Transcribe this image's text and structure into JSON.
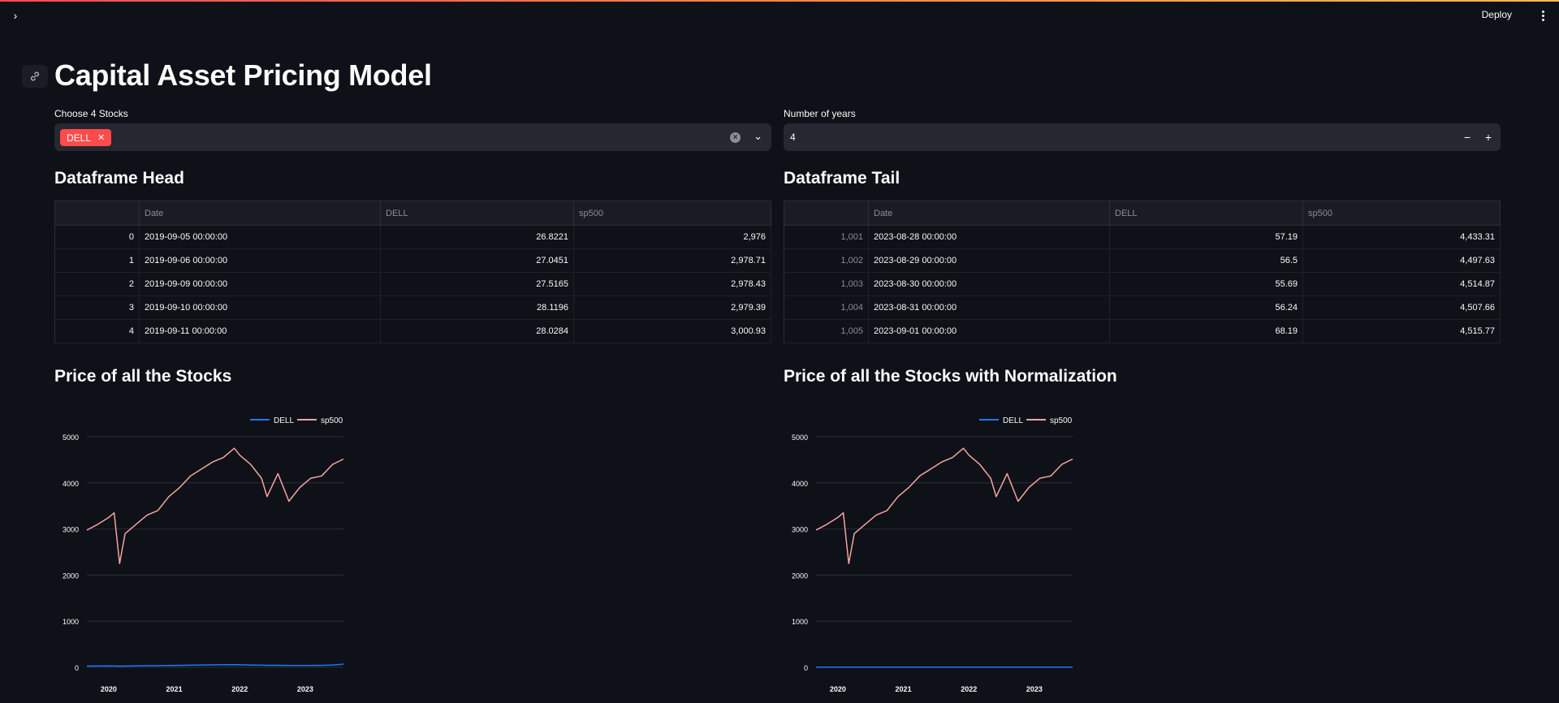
{
  "header": {
    "deploy_label": "Deploy"
  },
  "page": {
    "title": "Capital Asset Pricing Model"
  },
  "controls": {
    "stocks_label": "Choose 4 Stocks",
    "selected_stocks": [
      "DELL"
    ],
    "years_label": "Number of years",
    "years_value": "4"
  },
  "head_table": {
    "title": "Dataframe Head",
    "columns": [
      "",
      "Date",
      "DELL",
      "sp500"
    ],
    "rows": [
      [
        "0",
        "2019-09-05 00:00:00",
        "26.8221",
        "2,976"
      ],
      [
        "1",
        "2019-09-06 00:00:00",
        "27.0451",
        "2,978.71"
      ],
      [
        "2",
        "2019-09-09 00:00:00",
        "27.5165",
        "2,978.43"
      ],
      [
        "3",
        "2019-09-10 00:00:00",
        "28.1196",
        "2,979.39"
      ],
      [
        "4",
        "2019-09-11 00:00:00",
        "28.0284",
        "3,000.93"
      ]
    ]
  },
  "tail_table": {
    "title": "Dataframe Tail",
    "columns": [
      "",
      "Date",
      "DELL",
      "sp500"
    ],
    "rows": [
      [
        "1,001",
        "2023-08-28 00:00:00",
        "57.19",
        "4,433.31"
      ],
      [
        "1,002",
        "2023-08-29 00:00:00",
        "56.5",
        "4,497.63"
      ],
      [
        "1,003",
        "2023-08-30 00:00:00",
        "55.69",
        "4,514.87"
      ],
      [
        "1,004",
        "2023-08-31 00:00:00",
        "56.24",
        "4,507.66"
      ],
      [
        "1,005",
        "2023-09-01 00:00:00",
        "68.19",
        "4,515.77"
      ]
    ]
  },
  "charts": {
    "left_title": "Price of all the Stocks",
    "right_title": "Price of all the Stocks with Normalization"
  },
  "colors": {
    "dell": "#1f77ff",
    "sp500": "#f5a4a0",
    "accent": "#ff4b4b"
  },
  "chart_data": [
    {
      "type": "line",
      "title": "",
      "legend": "top-center",
      "grid": true,
      "x": [
        "2019-09",
        "2019-11",
        "2020-01",
        "2020-02",
        "2020-03",
        "2020-04",
        "2020-06",
        "2020-08",
        "2020-10",
        "2020-12",
        "2021-02",
        "2021-04",
        "2021-06",
        "2021-08",
        "2021-10",
        "2021-12",
        "2022-01",
        "2022-03",
        "2022-05",
        "2022-06",
        "2022-08",
        "2022-10",
        "2022-12",
        "2023-02",
        "2023-04",
        "2023-06",
        "2023-08"
      ],
      "xticks": [
        "2020",
        "2021",
        "2022",
        "2023"
      ],
      "yticks": [
        "0",
        "1000",
        "2000",
        "3000",
        "4000",
        "5000"
      ],
      "ylim": [
        0,
        5000
      ],
      "series": [
        {
          "name": "DELL",
          "values": [
            27,
            28,
            30,
            29,
            24,
            27,
            30,
            33,
            35,
            38,
            42,
            45,
            48,
            52,
            55,
            57,
            54,
            50,
            46,
            42,
            44,
            40,
            40,
            41,
            43,
            48,
            68
          ]
        },
        {
          "name": "sp500",
          "values": [
            2976,
            3100,
            3250,
            3350,
            2250,
            2900,
            3100,
            3300,
            3400,
            3700,
            3900,
            4150,
            4300,
            4450,
            4550,
            4750,
            4600,
            4400,
            4100,
            3700,
            4200,
            3600,
            3900,
            4100,
            4150,
            4400,
            4515
          ]
        }
      ]
    },
    {
      "type": "line",
      "title": "",
      "legend": "top-center",
      "grid": true,
      "x": [
        "2019-09",
        "2019-11",
        "2020-01",
        "2020-02",
        "2020-03",
        "2020-04",
        "2020-06",
        "2020-08",
        "2020-10",
        "2020-12",
        "2021-02",
        "2021-04",
        "2021-06",
        "2021-08",
        "2021-10",
        "2021-12",
        "2022-01",
        "2022-03",
        "2022-05",
        "2022-06",
        "2022-08",
        "2022-10",
        "2022-12",
        "2023-02",
        "2023-04",
        "2023-06",
        "2023-08"
      ],
      "xticks": [
        "2020",
        "2021",
        "2022",
        "2023"
      ],
      "yticks": [
        "0",
        "1000",
        "2000",
        "3000",
        "4000",
        "5000"
      ],
      "ylim": [
        0,
        5000
      ],
      "series": [
        {
          "name": "DELL",
          "values": [
            1,
            1,
            1.1,
            1.1,
            0.9,
            1,
            1.1,
            1.2,
            1.3,
            1.4,
            1.6,
            1.7,
            1.8,
            1.9,
            2,
            2.1,
            2,
            1.9,
            1.7,
            1.6,
            1.6,
            1.5,
            1.5,
            1.5,
            1.6,
            1.8,
            2.5
          ]
        },
        {
          "name": "sp500",
          "values": [
            2976,
            3100,
            3250,
            3350,
            2250,
            2900,
            3100,
            3300,
            3400,
            3700,
            3900,
            4150,
            4300,
            4450,
            4550,
            4750,
            4600,
            4400,
            4100,
            3700,
            4200,
            3600,
            3900,
            4100,
            4150,
            4400,
            4515
          ]
        }
      ]
    }
  ]
}
